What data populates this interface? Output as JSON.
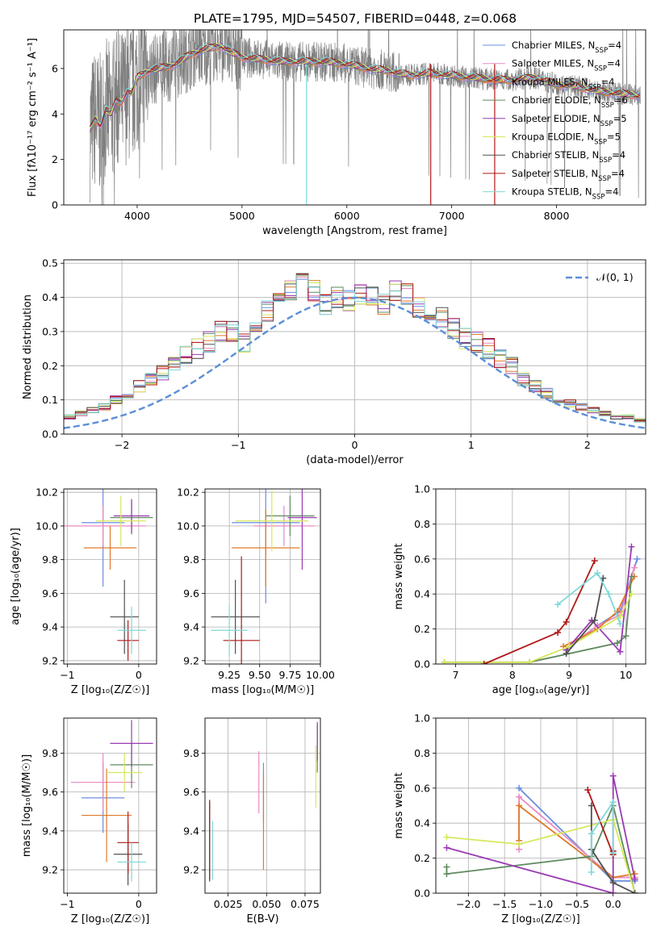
{
  "figure": {
    "title": "PLATE=1795, MJD=54507, FIBERID=0448, z=0.068"
  },
  "models": [
    {
      "name": "Chabrier MILES",
      "nssp": "4",
      "color": "#6a8ee0"
    },
    {
      "name": "Salpeter MILES",
      "nssp": "4",
      "color": "#e88ac0"
    },
    {
      "name": "Kroupa MILES",
      "nssp": "4",
      "color": "#e07a2a"
    },
    {
      "name": "Chabrier ELODIE",
      "nssp": "6",
      "color": "#5f8a5f"
    },
    {
      "name": "Salpeter ELODIE",
      "nssp": "5",
      "color": "#9a3ab2"
    },
    {
      "name": "Kroupa ELODIE",
      "nssp": "5",
      "color": "#d7e85a"
    },
    {
      "name": "Chabrier STELIB",
      "nssp": "4",
      "color": "#505050"
    },
    {
      "name": "Salpeter STELIB",
      "nssp": "4",
      "color": "#b01818"
    },
    {
      "name": "Kroupa STELIB",
      "nssp": "4",
      "color": "#7fd8d8"
    }
  ],
  "chart_data": [
    {
      "id": "spectrum",
      "type": "line",
      "title": "PLATE=1795, MJD=54507, FIBERID=0448, z=0.068",
      "xlabel": "wavelength [Angstrom, rest frame]",
      "ylabel": "Flux [fλ10⁻¹⁷ erg cm⁻² s⁻¹ A⁻¹]",
      "xlim": [
        3300,
        8850
      ],
      "ylim": [
        0,
        7.7
      ],
      "xticks": [
        "4000",
        "5000",
        "6000",
        "7000",
        "8000"
      ],
      "yticks": [
        "0",
        "2",
        "4",
        "6"
      ],
      "legend_position": "top-right",
      "model_continuum": {
        "x": [
          3550,
          3600,
          3650,
          3700,
          3750,
          3800,
          3850,
          3900,
          3950,
          4000,
          4100,
          4200,
          4300,
          4400,
          4500,
          4600,
          4700,
          4800,
          4900,
          5000,
          5200,
          5400,
          5600,
          5800,
          6000,
          6200,
          6400,
          6600,
          6800,
          7000,
          7200,
          7400,
          7600,
          7800,
          8000,
          8200,
          8400,
          8600,
          8800
        ],
        "y": [
          3.3,
          3.8,
          3.5,
          4.2,
          4.0,
          4.6,
          4.5,
          5.0,
          4.9,
          5.6,
          5.9,
          6.0,
          6.1,
          6.3,
          6.6,
          6.8,
          6.9,
          7.0,
          6.7,
          6.5,
          6.4,
          6.3,
          6.3,
          6.3,
          6.2,
          6.0,
          5.9,
          5.7,
          5.8,
          5.7,
          5.6,
          5.5,
          5.5,
          5.6,
          5.3,
          5.2,
          5.0,
          4.9,
          4.8
        ]
      },
      "noise_start": 3550
    },
    {
      "id": "residuals",
      "type": "histogram",
      "xlabel": "(data-model)/error",
      "ylabel": "Normed distribution",
      "xlim": [
        -2.5,
        2.5
      ],
      "ylim": [
        0,
        0.51
      ],
      "xticks": [
        "−2",
        "−1",
        "0",
        "1",
        "2"
      ],
      "yticks": [
        "0.0",
        "0.1",
        "0.2",
        "0.3",
        "0.4",
        "0.5"
      ],
      "legend": "𝒩(0, 1)",
      "legend_position": "top-right",
      "bin_width": 0.1,
      "base_bins": [
        0.02,
        0.03,
        0.03,
        0.04,
        0.05,
        0.05,
        0.06,
        0.07,
        0.08,
        0.1,
        0.12,
        0.14,
        0.16,
        0.18,
        0.2,
        0.23,
        0.25,
        0.27,
        0.3,
        0.3,
        0.27,
        0.33,
        0.36,
        0.4,
        0.42,
        0.44,
        0.42,
        0.38,
        0.4,
        0.39,
        0.41,
        0.4,
        0.38,
        0.42,
        0.41,
        0.37,
        0.33,
        0.34,
        0.31,
        0.28,
        0.27,
        0.25,
        0.22,
        0.2,
        0.16,
        0.14,
        0.12,
        0.1,
        0.09,
        0.08,
        0.07,
        0.06,
        0.05,
        0.05,
        0.04,
        0.03,
        0.03,
        0.03,
        0.02,
        0.02
      ]
    },
    {
      "id": "z-age",
      "type": "errorbar",
      "xlabel": "Z [log₁₀(Z/Z☉)]",
      "ylabel": "age  [log₁₀(age/yr)]",
      "xlim": [
        -1.05,
        0.25
      ],
      "ylim": [
        9.18,
        10.22
      ],
      "xticks": [
        "−1",
        "0"
      ],
      "yticks": [
        "9.2",
        "9.4",
        "9.6",
        "9.8",
        "10.0",
        "10.2"
      ],
      "points": [
        {
          "m": 0,
          "x": -0.5,
          "y": 10.02,
          "xe": 0.3,
          "ye": 0.38
        },
        {
          "m": 1,
          "x": -0.5,
          "y": 10.0,
          "xe": 0.6,
          "ye": 0.12
        },
        {
          "m": 2,
          "x": -0.4,
          "y": 9.87,
          "xe": 0.37,
          "ye": 0.13
        },
        {
          "m": 3,
          "x": -0.1,
          "y": 10.05,
          "xe": 0.3,
          "ye": 0.1
        },
        {
          "m": 4,
          "x": -0.1,
          "y": 10.06,
          "xe": 0.25,
          "ye": 0.1
        },
        {
          "m": 5,
          "x": -0.25,
          "y": 10.03,
          "xe": 0.35,
          "ye": 0.15
        },
        {
          "m": 6,
          "x": -0.2,
          "y": 9.46,
          "xe": 0.2,
          "ye": 0.22
        },
        {
          "m": 7,
          "x": -0.15,
          "y": 9.32,
          "xe": 0.15,
          "ye": 0.12
        },
        {
          "m": 8,
          "x": -0.1,
          "y": 9.38,
          "xe": 0.2,
          "ye": 0.14
        }
      ]
    },
    {
      "id": "mass-age",
      "type": "errorbar",
      "xlabel": "mass [log₁₀(M/M☉)]",
      "ylabel": "",
      "xlim": [
        9.05,
        10.0
      ],
      "ylim": [
        9.18,
        10.22
      ],
      "xticks": [
        "9.25",
        "9.50",
        "9.75",
        "10.00"
      ],
      "yticks": [
        "9.2",
        "9.4",
        "9.6",
        "9.8",
        "10.0",
        "10.2"
      ],
      "points": [
        {
          "m": 0,
          "x": 9.55,
          "y": 10.02,
          "xe": 0.28,
          "ye": 0.48
        },
        {
          "m": 1,
          "x": 9.7,
          "y": 10.0,
          "xe": 0.25,
          "ye": 0.12
        },
        {
          "m": 2,
          "x": 9.55,
          "y": 9.87,
          "xe": 0.28,
          "ye": 0.23
        },
        {
          "m": 3,
          "x": 9.75,
          "y": 10.06,
          "xe": 0.2,
          "ye": 0.12
        },
        {
          "m": 4,
          "x": 9.85,
          "y": 10.05,
          "xe": 0.12,
          "ye": 0.31
        },
        {
          "m": 5,
          "x": 9.6,
          "y": 10.03,
          "xe": 0.3,
          "ye": 0.18
        },
        {
          "m": 6,
          "x": 9.3,
          "y": 9.46,
          "xe": 0.2,
          "ye": 0.22
        },
        {
          "m": 7,
          "x": 9.35,
          "y": 9.32,
          "xe": 0.15,
          "ye": 0.5
        },
        {
          "m": 8,
          "x": 9.25,
          "y": 9.38,
          "xe": 0.15,
          "ye": 0.15
        }
      ]
    },
    {
      "id": "age-massweight",
      "type": "line",
      "xlabel": "age  [log₁₀(age/yr)]",
      "ylabel": "mass weight",
      "xlim": [
        6.65,
        10.35
      ],
      "ylim": [
        0,
        1.0
      ],
      "xticks": [
        "7",
        "8",
        "9",
        "10"
      ],
      "yticks": [
        "0.0",
        "0.2",
        "0.4",
        "0.6",
        "0.8",
        "1.0"
      ],
      "series": [
        {
          "m": 0,
          "x": [
            8.95,
            9.5,
            9.9,
            10.2
          ],
          "y": [
            0.08,
            0.22,
            0.3,
            0.6
          ]
        },
        {
          "m": 1,
          "x": [
            8.95,
            9.5,
            9.9,
            10.15
          ],
          "y": [
            0.09,
            0.22,
            0.28,
            0.55
          ]
        },
        {
          "m": 2,
          "x": [
            8.9,
            9.5,
            9.85,
            10.15
          ],
          "y": [
            0.1,
            0.2,
            0.3,
            0.5
          ]
        },
        {
          "m": 3,
          "x": [
            6.8,
            8.3,
            9.85,
            10.0,
            10.1
          ],
          "y": [
            0.01,
            0.01,
            0.12,
            0.16,
            0.5
          ]
        },
        {
          "m": 4,
          "x": [
            8.95,
            9.4,
            9.9,
            10.1
          ],
          "y": [
            0.08,
            0.25,
            0.07,
            0.67
          ]
        },
        {
          "m": 5,
          "x": [
            6.8,
            8.3,
            9.0,
            9.9,
            10.1
          ],
          "y": [
            0.01,
            0.01,
            0.1,
            0.27,
            0.4
          ]
        },
        {
          "m": 6,
          "x": [
            8.95,
            9.45,
            9.6
          ],
          "y": [
            0.06,
            0.25,
            0.49
          ]
        },
        {
          "m": 7,
          "x": [
            7.5,
            8.8,
            8.95,
            9.45
          ],
          "y": [
            0.0,
            0.18,
            0.24,
            0.59
          ]
        },
        {
          "m": 8,
          "x": [
            8.8,
            9.5,
            9.7,
            9.9
          ],
          "y": [
            0.34,
            0.52,
            0.4,
            0.23
          ]
        }
      ]
    },
    {
      "id": "z-mass",
      "type": "errorbar",
      "xlabel": "Z [log₁₀(Z/Z☉)]",
      "ylabel": "mass [log₁₀(M/M☉)]",
      "xlim": [
        -1.05,
        0.25
      ],
      "ylim": [
        9.08,
        9.98
      ],
      "xticks": [
        "−1",
        "0"
      ],
      "yticks": [
        "9.2",
        "9.4",
        "9.6",
        "9.8"
      ],
      "points": [
        {
          "m": 0,
          "x": -0.5,
          "y": 9.57,
          "xe": 0.3,
          "ye": 0.18
        },
        {
          "m": 1,
          "x": -0.5,
          "y": 9.65,
          "xe": 0.45,
          "ye": 0.15
        },
        {
          "m": 2,
          "x": -0.45,
          "y": 9.48,
          "xe": 0.35,
          "ye": 0.24
        },
        {
          "m": 3,
          "x": -0.1,
          "y": 9.74,
          "xe": 0.3,
          "ye": 0.12
        },
        {
          "m": 4,
          "x": -0.1,
          "y": 9.85,
          "xe": 0.3,
          "ye": 0.12
        },
        {
          "m": 5,
          "x": -0.2,
          "y": 9.7,
          "xe": 0.25,
          "ye": 0.1
        },
        {
          "m": 6,
          "x": -0.15,
          "y": 9.28,
          "xe": 0.2,
          "ye": 0.16
        },
        {
          "m": 7,
          "x": -0.15,
          "y": 9.34,
          "xe": 0.15,
          "ye": 0.16
        },
        {
          "m": 8,
          "x": -0.1,
          "y": 9.24,
          "xe": 0.2,
          "ye": 0.1
        }
      ]
    },
    {
      "id": "ebv-mass",
      "type": "errorbar",
      "xlabel": "E(B-V)",
      "ylabel": "",
      "xlim": [
        0.01,
        0.085
      ],
      "ylim": [
        9.08,
        9.98
      ],
      "xticks": [
        "0.025",
        "0.050",
        "0.075"
      ],
      "yticks": [
        "9.2",
        "9.4",
        "9.6",
        "9.8"
      ],
      "points": [
        {
          "m": 0,
          "x": 0.048,
          "y": 9.6,
          "xe": 0,
          "ye": 0.15
        },
        {
          "m": 1,
          "x": 0.045,
          "y": 9.65,
          "xe": 0,
          "ye": 0.16
        },
        {
          "m": 2,
          "x": 0.048,
          "y": 9.45,
          "xe": 0,
          "ye": 0.25
        },
        {
          "m": 3,
          "x": 0.083,
          "y": 9.82,
          "xe": 0,
          "ye": 0.12
        },
        {
          "m": 4,
          "x": 0.083,
          "y": 9.86,
          "xe": 0,
          "ye": 0.1
        },
        {
          "m": 5,
          "x": 0.082,
          "y": 9.68,
          "xe": 0,
          "ye": 0.16
        },
        {
          "m": 6,
          "x": 0.013,
          "y": 9.35,
          "xe": 0,
          "ye": 0.2
        },
        {
          "m": 7,
          "x": 0.013,
          "y": 9.35,
          "xe": 0,
          "ye": 0.21
        },
        {
          "m": 8,
          "x": 0.015,
          "y": 9.3,
          "xe": 0,
          "ye": 0.15
        }
      ]
    },
    {
      "id": "z-massweight",
      "type": "line",
      "xlabel": "Z [log₁₀(Z/Z☉)]",
      "ylabel": "mass weight",
      "xlim": [
        -2.45,
        0.45
      ],
      "ylim": [
        0,
        1.0
      ],
      "xticks": [
        "−2.0",
        "−1.5",
        "−1.0",
        "−0.5",
        "0.0"
      ],
      "yticks": [
        "0.0",
        "0.2",
        "0.4",
        "0.6",
        "0.8",
        "1.0"
      ],
      "series": [
        {
          "m": 0,
          "x": [
            -1.3,
            0.0,
            0.3
          ],
          "y": [
            0.6,
            0.07,
            0.07
          ]
        },
        {
          "m": 1,
          "x": [
            -1.3,
            -1.3,
            0.0,
            0.3
          ],
          "y": [
            0.25,
            0.55,
            0.09,
            0.09
          ]
        },
        {
          "m": 2,
          "x": [
            -1.3,
            -1.3,
            0.0,
            0.3
          ],
          "y": [
            0.3,
            0.5,
            0.09,
            0.11
          ]
        },
        {
          "m": 3,
          "x": [
            -2.3,
            -2.3,
            -0.3,
            0.0,
            0.3
          ],
          "y": [
            0.15,
            0.11,
            0.21,
            0.5,
            0.0
          ]
        },
        {
          "m": 4,
          "x": [
            -2.3,
            0.0,
            0.0,
            0.3
          ],
          "y": [
            0.26,
            0.0,
            0.67,
            0.08
          ]
        },
        {
          "m": 5,
          "x": [
            -2.3,
            -1.3,
            0.0,
            0.3
          ],
          "y": [
            0.32,
            0.28,
            0.42,
            0.0
          ]
        },
        {
          "m": 6,
          "x": [
            -0.3,
            -0.3,
            0.0,
            0.3
          ],
          "y": [
            0.5,
            0.25,
            0.06,
            0.0
          ]
        },
        {
          "m": 7,
          "x": [
            -0.35,
            0.0,
            0.0
          ],
          "y": [
            0.59,
            0.22,
            0.24
          ]
        },
        {
          "m": 8,
          "x": [
            -0.3,
            -0.3,
            0.0,
            0.0
          ],
          "y": [
            0.12,
            0.34,
            0.52,
            0.23
          ]
        }
      ]
    }
  ]
}
